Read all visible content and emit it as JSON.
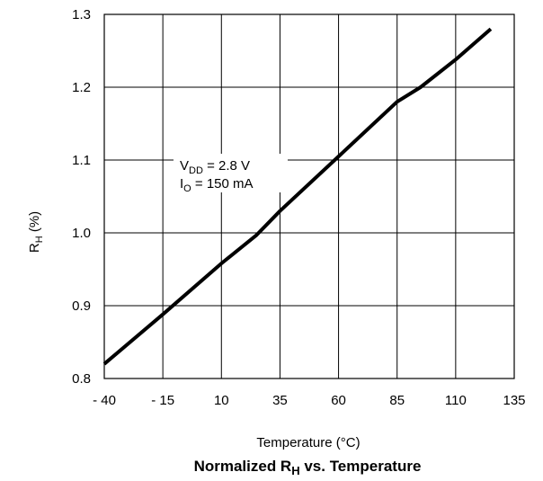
{
  "chart_data": {
    "type": "line",
    "title": {
      "main": "Normalized R",
      "sub": "H",
      "rest": " vs. Temperature"
    },
    "xlabel": "Temperature (°C)",
    "ylabel": {
      "main": "R",
      "sub": "H",
      "rest": " (%)"
    },
    "xlim": [
      -40,
      135
    ],
    "ylim": [
      0.8,
      1.3
    ],
    "x_ticks": [
      -40,
      -15,
      10,
      35,
      60,
      85,
      110,
      135
    ],
    "x_tick_labels": [
      "- 40",
      "- 15",
      "10",
      "35",
      "60",
      "85",
      "110",
      "135"
    ],
    "y_ticks": [
      0.8,
      0.9,
      1.0,
      1.1,
      1.2,
      1.3
    ],
    "y_tick_labels": [
      "0.8",
      "0.9",
      "1.0",
      "1.1",
      "1.2",
      "1.3"
    ],
    "grid": true,
    "series": [
      {
        "x": [
          -40,
          -15,
          10,
          25,
          35,
          60,
          85,
          95,
          110,
          125
        ],
        "y": [
          0.82,
          0.888,
          0.958,
          0.997,
          1.03,
          1.105,
          1.18,
          1.2,
          1.238,
          1.28
        ],
        "color": "#000000"
      }
    ],
    "annotations": [
      {
        "main": "V",
        "sub": "DD",
        "rest": " = 2.8 V"
      },
      {
        "main": "I",
        "sub": "O",
        "rest": " = 150 mA"
      }
    ]
  }
}
